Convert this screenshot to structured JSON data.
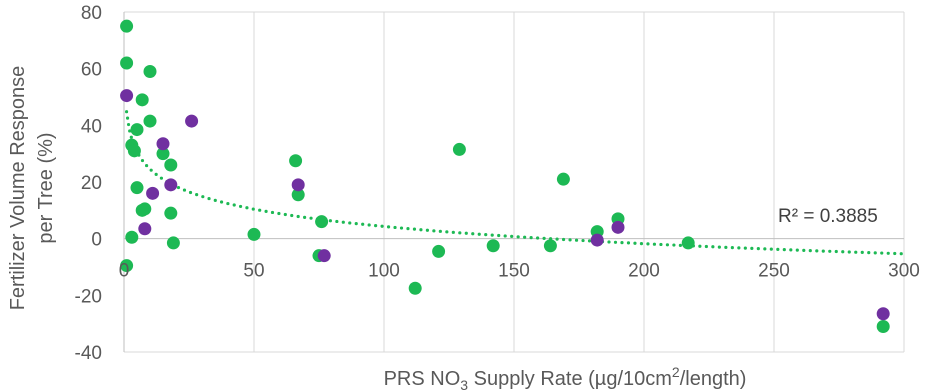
{
  "chart_data": {
    "type": "scatter",
    "xlabel": {
      "prefix": "PRS NO",
      "sub": "3",
      "middle": " Supply Rate (µg/10cm",
      "sup": "2",
      "suffix": "/length)"
    },
    "ylabel": {
      "line1": "Fertilizer Volume Response",
      "line2": "per Tree  (%)"
    },
    "xlim": [
      0,
      300
    ],
    "ylim": [
      -40,
      80
    ],
    "x_ticks": [
      "0",
      "50",
      "100",
      "150",
      "200",
      "250",
      "300"
    ],
    "y_ticks": [
      "-40",
      "-20",
      "0",
      "20",
      "40",
      "60",
      "80"
    ],
    "x_tick_values": [
      0,
      50,
      100,
      150,
      200,
      250,
      300
    ],
    "y_tick_values": [
      -40,
      -20,
      0,
      20,
      40,
      60,
      80
    ],
    "grid": "vertical",
    "series": [
      {
        "color": "#1db954",
        "points": [
          [
            1,
            75
          ],
          [
            1,
            62
          ],
          [
            1,
            -9.5
          ],
          [
            10,
            59
          ],
          [
            7,
            49
          ],
          [
            10,
            41.5
          ],
          [
            5,
            38.5
          ],
          [
            3,
            33
          ],
          [
            4,
            31
          ],
          [
            15,
            30
          ],
          [
            18,
            26
          ],
          [
            5,
            18
          ],
          [
            8,
            10.5
          ],
          [
            7,
            10
          ],
          [
            18,
            9
          ],
          [
            3,
            0.5
          ],
          [
            19,
            -1.5
          ],
          [
            50,
            1.5
          ],
          [
            66,
            27.5
          ],
          [
            67,
            15.5
          ],
          [
            76,
            6
          ],
          [
            75,
            -6
          ],
          [
            112,
            -17.5
          ],
          [
            121,
            -4.5
          ],
          [
            129,
            31.5
          ],
          [
            142,
            -2.5
          ],
          [
            164,
            -2.5
          ],
          [
            169,
            21
          ],
          [
            182,
            2.5
          ],
          [
            190,
            7
          ],
          [
            217,
            -1.5
          ],
          [
            292,
            -31
          ]
        ]
      },
      {
        "color": "#7030a0",
        "points": [
          [
            1,
            50.5
          ],
          [
            26,
            41.5
          ],
          [
            15,
            33.5
          ],
          [
            11,
            16
          ],
          [
            18,
            19
          ],
          [
            8,
            3.5
          ],
          [
            67,
            19
          ],
          [
            77,
            -6
          ],
          [
            182,
            -0.5
          ],
          [
            190,
            4
          ],
          [
            292,
            -26.5
          ]
        ]
      }
    ],
    "trendline": {
      "type": "logarithmic",
      "a": 44.8,
      "b": -8.79,
      "color": "#1db954",
      "style": "dotted"
    },
    "annotations": [
      {
        "text": "R² = 0.3885"
      }
    ]
  }
}
